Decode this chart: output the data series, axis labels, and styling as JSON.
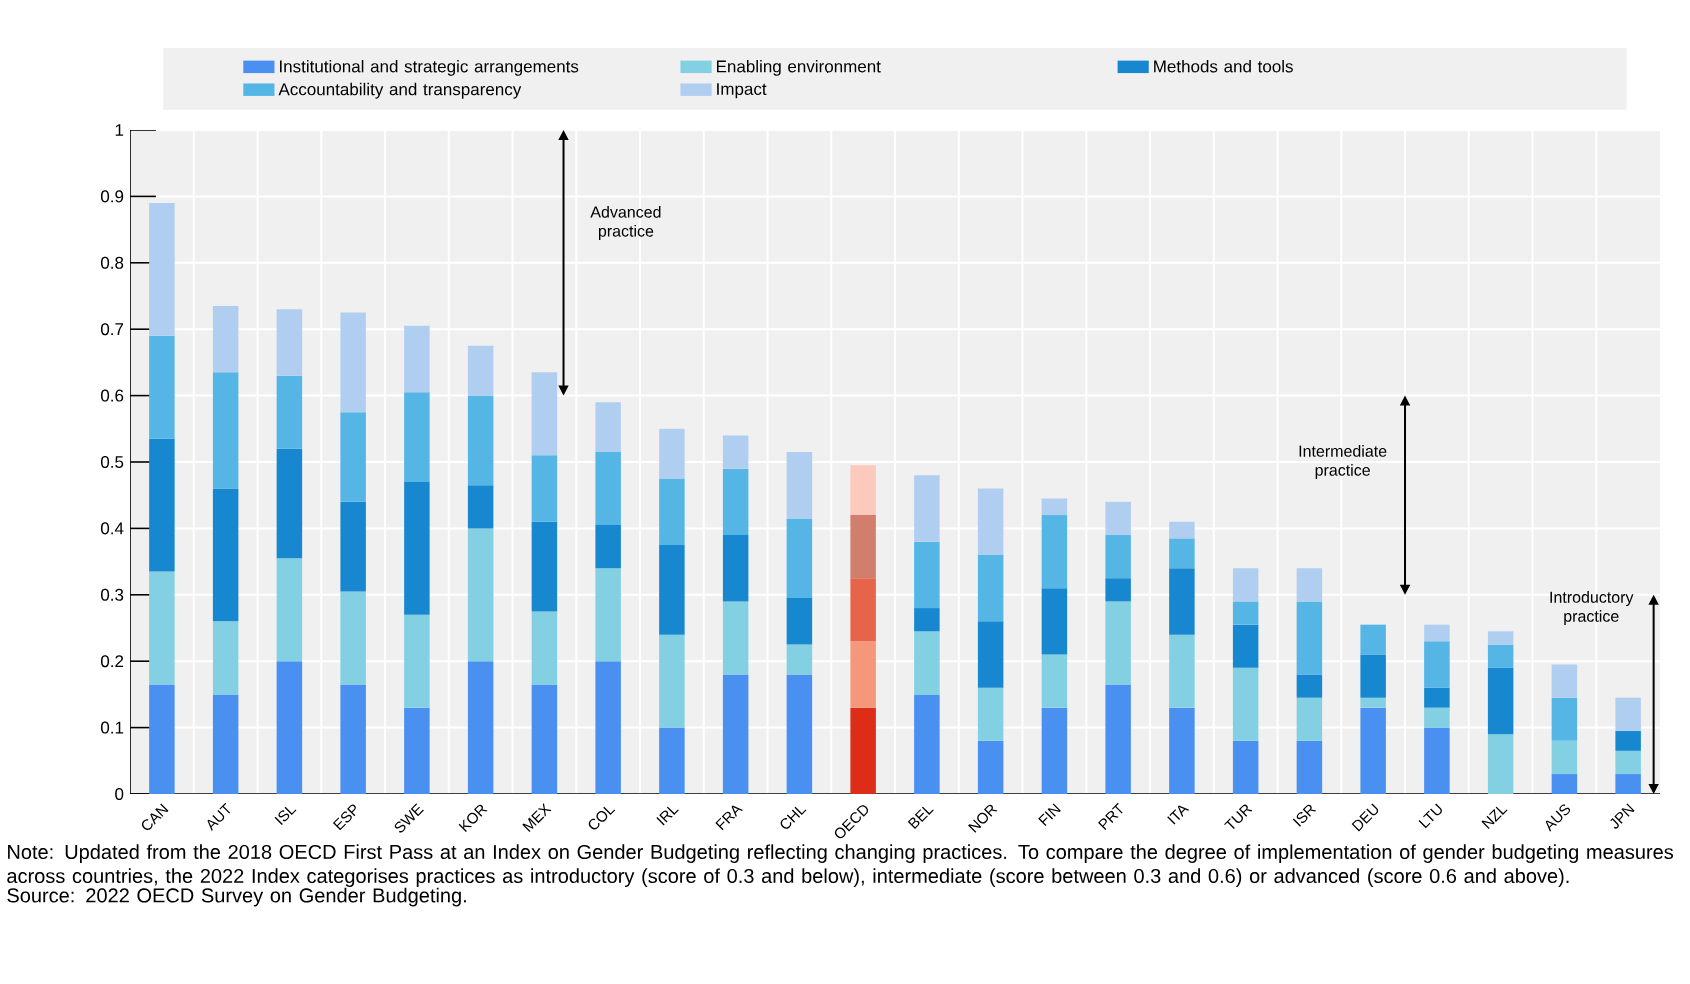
{
  "chart_data": {
    "type": "bar",
    "stacked": true,
    "categories": [
      "CAN",
      "AUT",
      "ISL",
      "ESP",
      "SWE",
      "KOR",
      "MEX",
      "COL",
      "IRL",
      "FRA",
      "CHL",
      "OECD",
      "BEL",
      "NOR",
      "FIN",
      "PRT",
      "ITA",
      "TUR",
      "ISR",
      "DEU",
      "LTU",
      "NZL",
      "AUS",
      "JPN"
    ],
    "series": [
      {
        "name": "Institutional and strategic arrangements",
        "color": "#4a90f0",
        "colors": [
          "#4a90f0",
          "#4a90f0",
          "#4a90f0",
          "#4a90f0",
          "#4a90f0",
          "#4a90f0",
          "#4a90f0",
          "#4a90f0",
          "#4a90f0",
          "#4a90f0",
          "#4a90f0",
          "#de2d17",
          "#4a90f0",
          "#4a90f0",
          "#4a90f0",
          "#4a90f0",
          "#4a90f0",
          "#4a90f0",
          "#4a90f0",
          "#4a90f0",
          "#4a90f0",
          "#4a90f0",
          "#4a90f0",
          "#4a90f0"
        ],
        "values": [
          0.165,
          0.15,
          0.2,
          0.165,
          0.13,
          0.2,
          0.165,
          0.2,
          0.1,
          0.18,
          0.18,
          0.13,
          0.15,
          0.08,
          0.13,
          0.165,
          0.13,
          0.08,
          0.08,
          0.13,
          0.1,
          0,
          0.03,
          0.03
        ]
      },
      {
        "name": "Enabling environment",
        "color": "#83d0e2",
        "colors": [
          "#83d0e2",
          "#83d0e2",
          "#83d0e2",
          "#83d0e2",
          "#83d0e2",
          "#83d0e2",
          "#83d0e2",
          "#83d0e2",
          "#83d0e2",
          "#83d0e2",
          "#83d0e2",
          "#f5977a",
          "#83d0e2",
          "#83d0e2",
          "#83d0e2",
          "#83d0e2",
          "#83d0e2",
          "#83d0e2",
          "#83d0e2",
          "#83d0e2",
          "#83d0e2",
          "#83d0e2",
          "#83d0e2",
          "#83d0e2"
        ],
        "values": [
          0.17,
          0.11,
          0.155,
          0.14,
          0.14,
          0.2,
          0.11,
          0.14,
          0.14,
          0.11,
          0.045,
          0.1,
          0.095,
          0.08,
          0.08,
          0.125,
          0.11,
          0.11,
          0.065,
          0.015,
          0.03,
          0.09,
          0.05,
          0.035
        ]
      },
      {
        "name": "Methods and tools",
        "color": "#1788d0",
        "colors": [
          "#1788d0",
          "#1788d0",
          "#1788d0",
          "#1788d0",
          "#1788d0",
          "#1788d0",
          "#1788d0",
          "#1788d0",
          "#1788d0",
          "#1788d0",
          "#1788d0",
          "#e6654a",
          "#1788d0",
          "#1788d0",
          "#1788d0",
          "#1788d0",
          "#1788d0",
          "#1788d0",
          "#1788d0",
          "#1788d0",
          "#1788d0",
          "#1788d0",
          "#1788d0",
          "#1788d0"
        ],
        "values": [
          0.2,
          0.2,
          0.165,
          0.135,
          0.2,
          0.065,
          0.135,
          0.065,
          0.135,
          0.1,
          0.07,
          0.095,
          0.035,
          0.1,
          0.1,
          0.035,
          0.1,
          0.065,
          0.035,
          0.065,
          0.03,
          0.1,
          0,
          0.03
        ]
      },
      {
        "name": "Accountability and transparency",
        "color": "#55b6e6",
        "colors": [
          "#55b6e6",
          "#55b6e6",
          "#55b6e6",
          "#55b6e6",
          "#55b6e6",
          "#55b6e6",
          "#55b6e6",
          "#55b6e6",
          "#55b6e6",
          "#55b6e6",
          "#55b6e6",
          "#d27e6c",
          "#55b6e6",
          "#55b6e6",
          "#55b6e6",
          "#55b6e6",
          "#55b6e6",
          "#55b6e6",
          "#55b6e6",
          "#55b6e6",
          "#55b6e6",
          "#55b6e6",
          "#55b6e6",
          "#55b6e6"
        ],
        "values": [
          0.155,
          0.175,
          0.11,
          0.135,
          0.135,
          0.135,
          0.1,
          0.11,
          0.1,
          0.1,
          0.12,
          0.095,
          0.1,
          0.1,
          0.11,
          0.065,
          0.045,
          0.035,
          0.11,
          0.045,
          0.07,
          0.035,
          0.065,
          0
        ]
      },
      {
        "name": "Impact",
        "color": "#b0cff0",
        "colors": [
          "#b0cff0",
          "#b0cff0",
          "#b0cff0",
          "#b0cff0",
          "#b0cff0",
          "#b0cff0",
          "#b0cff0",
          "#b0cff0",
          "#b0cff0",
          "#b0cff0",
          "#b0cff0",
          "#fcc9bd",
          "#b0cff0",
          "#b0cff0",
          "#b0cff0",
          "#b0cff0",
          "#b0cff0",
          "#b0cff0",
          "#b0cff0",
          "#b0cff0",
          "#b0cff0",
          "#b0cff0",
          "#b0cff0",
          "#b0cff0"
        ],
        "values": [
          0.2,
          0.1,
          0.1,
          0.15,
          0.1,
          0.075,
          0.125,
          0.075,
          0.075,
          0.05,
          0.1,
          0.075,
          0.1,
          0.1,
          0.025,
          0.05,
          0.025,
          0.05,
          0.05,
          0,
          0.025,
          0.02,
          0.05,
          0.05
        ]
      }
    ],
    "ylim": [
      0,
      1
    ],
    "yticks": [
      0,
      0.1,
      0.2,
      0.3,
      0.4,
      0.5,
      0.6,
      0.7,
      0.8,
      0.9,
      1
    ],
    "grid": true,
    "legend": "top",
    "annotations": [
      "Advanced practice",
      "Intermediate practice",
      "Introductory practice",
      "Note: Updated from the 2018 OECD First Pass at an Index on Gender Budgeting reflecting changing practices. To compare the degree of implementation of gender budgeting measures across countries, the 2022 Index categorises practices as introductory (score of 0.3 and below), intermediate (score between 0.3 and 0.6) or advanced (score 0.6 and above).",
      "Source: 2022 OECD Survey on Gender Budgeting."
    ]
  }
}
